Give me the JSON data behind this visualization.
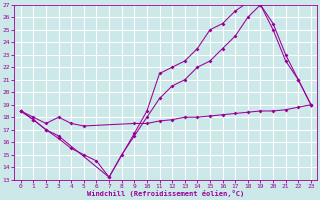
{
  "xlabel": "Windchill (Refroidissement éolien,°C)",
  "bg_color": "#cce8e8",
  "grid_color": "#ffffff",
  "line_color": "#990099",
  "xlim": [
    -0.5,
    23.5
  ],
  "ylim": [
    13,
    27
  ],
  "yticks": [
    13,
    14,
    15,
    16,
    17,
    18,
    19,
    20,
    21,
    22,
    23,
    24,
    25,
    26,
    27
  ],
  "xticks": [
    0,
    1,
    2,
    3,
    4,
    5,
    6,
    7,
    8,
    9,
    10,
    11,
    12,
    13,
    14,
    15,
    16,
    17,
    18,
    19,
    20,
    21,
    22,
    23
  ],
  "line1_x": [
    0,
    1,
    2,
    3,
    4,
    5,
    6,
    7,
    8,
    9,
    10,
    11,
    12,
    13,
    14,
    15,
    16,
    17,
    18,
    19,
    20,
    21,
    22,
    23
  ],
  "line1_y": [
    18.5,
    17.8,
    17.0,
    16.3,
    15.5,
    15.0,
    14.5,
    13.2,
    15.0,
    16.5,
    18.0,
    19.5,
    20.5,
    21.0,
    22.0,
    22.5,
    23.5,
    24.5,
    26.0,
    27.0,
    25.5,
    23.0,
    21.0,
    19.0
  ],
  "line2_x": [
    0,
    1,
    2,
    3,
    7,
    9,
    10,
    11,
    12,
    13,
    14,
    15,
    16,
    17,
    18,
    19,
    20,
    21,
    22,
    23
  ],
  "line2_y": [
    18.5,
    17.8,
    17.0,
    16.5,
    13.2,
    16.7,
    18.5,
    21.5,
    22.0,
    22.5,
    23.5,
    25.0,
    25.5,
    26.5,
    27.2,
    27.0,
    25.0,
    22.5,
    21.0,
    19.0
  ],
  "line3_x": [
    0,
    1,
    2,
    3,
    4,
    5,
    9,
    10,
    11,
    12,
    13,
    14,
    15,
    16,
    17,
    18,
    19,
    20,
    21,
    22,
    23
  ],
  "line3_y": [
    18.5,
    18.0,
    17.5,
    18.0,
    17.5,
    17.3,
    17.5,
    17.5,
    17.7,
    17.8,
    18.0,
    18.0,
    18.1,
    18.2,
    18.3,
    18.4,
    18.5,
    18.5,
    18.6,
    18.8,
    19.0
  ]
}
